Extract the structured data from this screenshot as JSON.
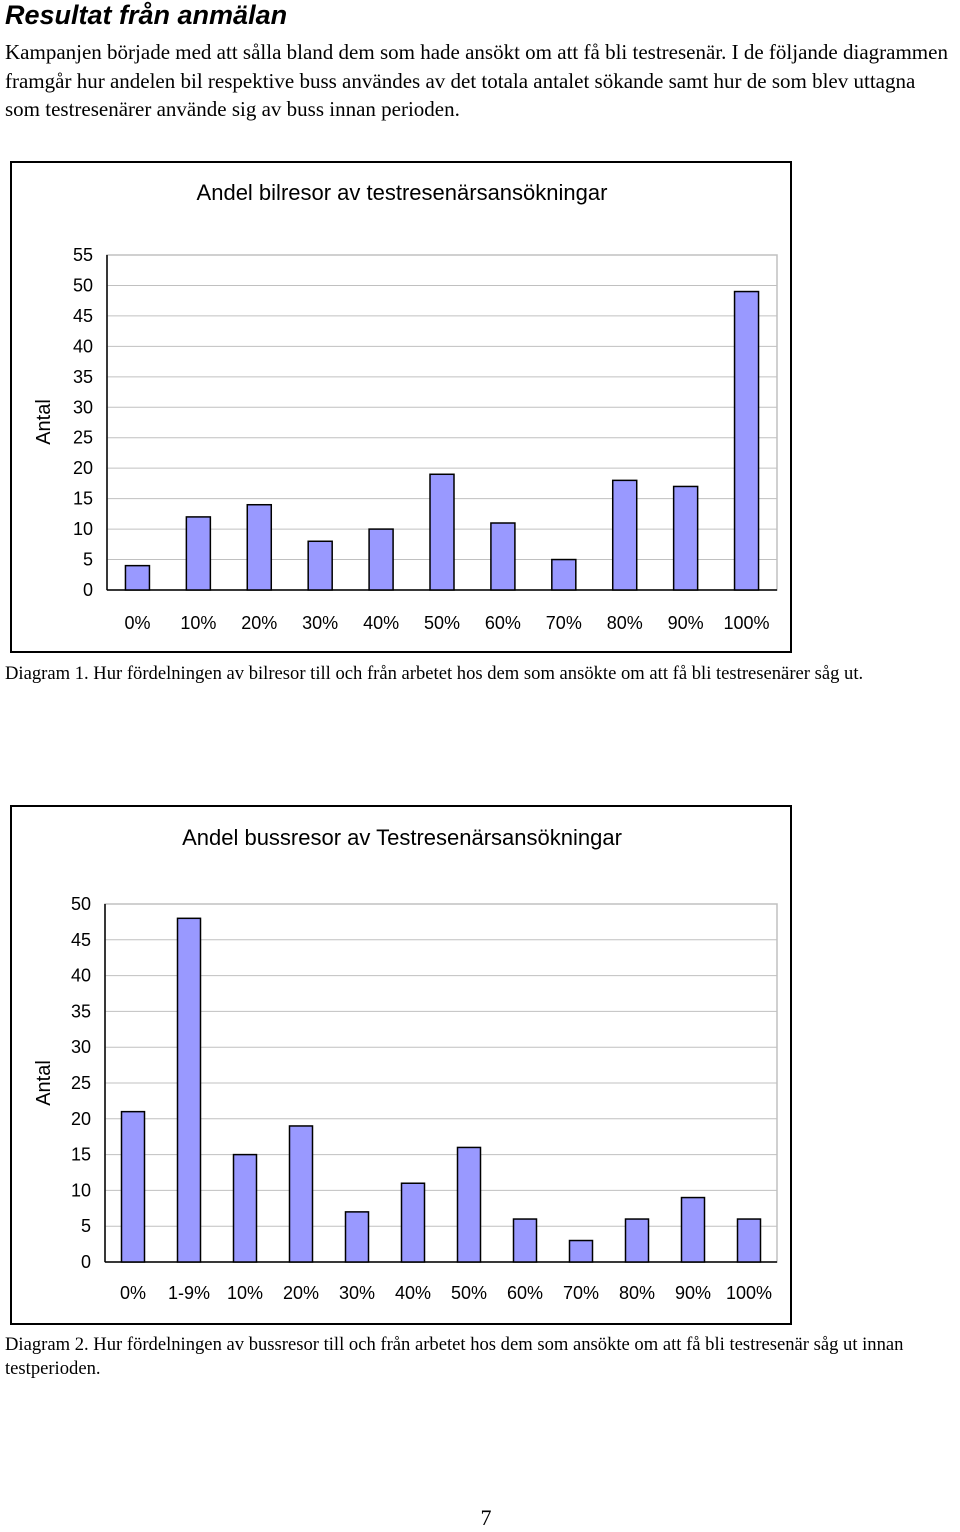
{
  "page": {
    "heading": "Resultat från anmälan",
    "intro": "Kampanjen började med att sålla bland dem som hade ansökt om att få bli testresenär. I de följande diagrammen framgår hur andelen bil respektive buss användes av det totala antalet sökande samt hur de som blev uttagna som testresenärer använde sig av buss innan perioden.",
    "caption1": "Diagram 1. Hur fördelningen av bilresor till och från arbetet hos dem som ansökte om att få bli testresenärer såg ut.",
    "caption2": "Diagram 2. Hur fördelningen av bussresor till och från arbetet hos dem som ansökte om att få bli testresenär såg ut innan testperioden.",
    "page_number": "7"
  },
  "colors": {
    "bar": "#9999ff",
    "bar_stroke": "#000000",
    "grid": "#c0c0c0"
  },
  "chart_data": [
    {
      "type": "bar",
      "title": "Andel bilresor av testresenärsansökningar",
      "xlabel": "",
      "ylabel": "Antal",
      "categories": [
        "0%",
        "10%",
        "20%",
        "30%",
        "40%",
        "50%",
        "60%",
        "70%",
        "80%",
        "90%",
        "100%"
      ],
      "values": [
        4,
        12,
        14,
        8,
        10,
        19,
        11,
        5,
        18,
        17,
        49
      ],
      "ylim": [
        0,
        55
      ],
      "yticks": [
        0,
        5,
        10,
        15,
        20,
        25,
        30,
        35,
        40,
        45,
        50,
        55
      ],
      "grid": true,
      "legend": "none"
    },
    {
      "type": "bar",
      "title": "Andel bussresor av Testresenärsansökningar",
      "xlabel": "",
      "ylabel": "Antal",
      "categories": [
        "0%",
        "1-9%",
        "10%",
        "20%",
        "30%",
        "40%",
        "50%",
        "60%",
        "70%",
        "80%",
        "90%",
        "100%"
      ],
      "values": [
        21,
        48,
        15,
        19,
        7,
        11,
        16,
        6,
        3,
        6,
        9,
        6
      ],
      "ylim": [
        0,
        50
      ],
      "yticks": [
        0,
        5,
        10,
        15,
        20,
        25,
        30,
        35,
        40,
        45,
        50
      ],
      "grid": true,
      "legend": "none"
    }
  ]
}
